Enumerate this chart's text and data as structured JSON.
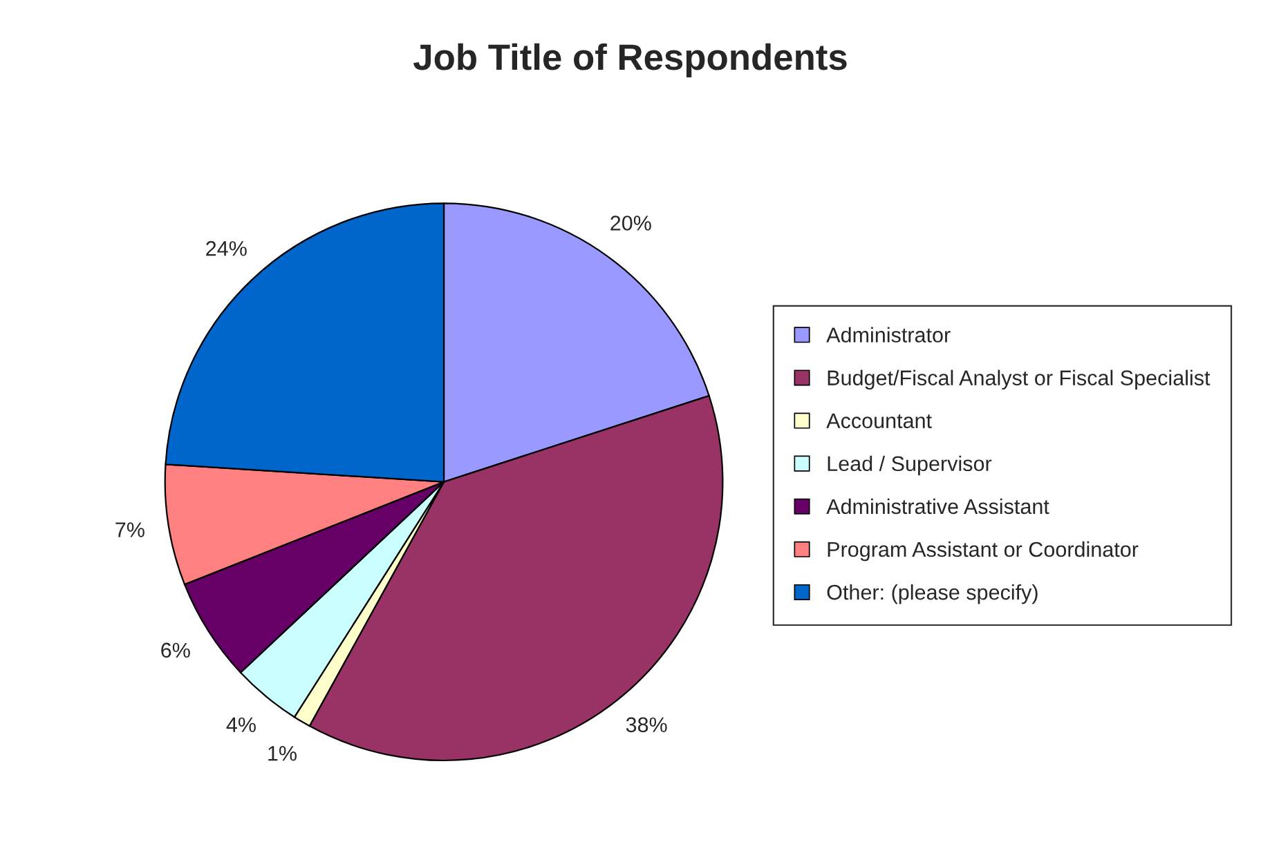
{
  "chart_data": {
    "type": "pie",
    "title": "Job Title of Respondents",
    "categories": [
      "Administrator",
      "Budget/Fiscal Analyst or Fiscal Specialist",
      "Accountant",
      "Lead / Supervisor",
      "Administrative Assistant",
      "Program Assistant or Coordinator",
      "Other: (please specify)"
    ],
    "values": [
      20,
      38,
      1,
      4,
      6,
      7,
      24
    ],
    "colors": [
      "#9999ff",
      "#993366",
      "#ffffcc",
      "#ccffff",
      "#660066",
      "#ff8080",
      "#0066cc"
    ],
    "value_labels": [
      "20%",
      "38%",
      "1%",
      "4%",
      "6%",
      "7%",
      "24%"
    ],
    "legend": "right"
  }
}
